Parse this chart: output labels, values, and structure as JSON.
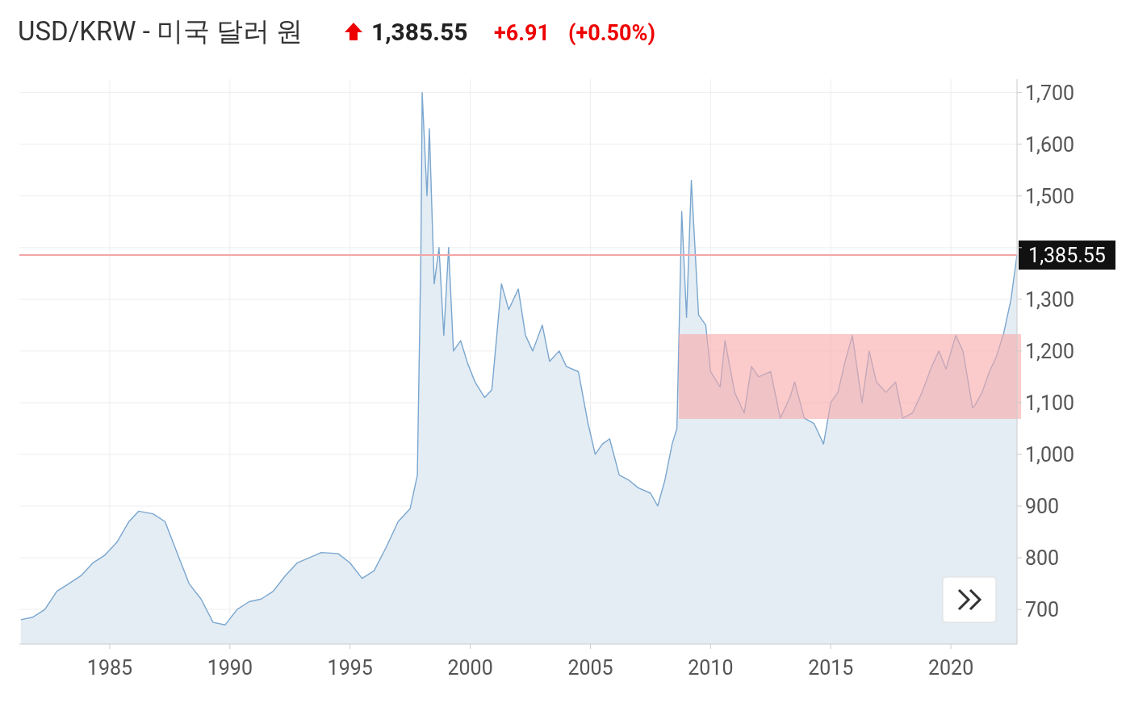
{
  "chart_data": {
    "type": "area",
    "title": "USD/KRW - 미국 달러 원",
    "annotations": [
      "1,385.55",
      "+6.91",
      "(+0.50%)"
    ],
    "x": [
      1981.3,
      1981.8,
      1982.3,
      1982.8,
      1983.3,
      1983.8,
      1984.3,
      1984.8,
      1985.3,
      1985.8,
      1986.2,
      1986.8,
      1987.3,
      1987.8,
      1988.3,
      1988.8,
      1989.3,
      1989.8,
      1990.3,
      1990.8,
      1991.3,
      1991.8,
      1992.3,
      1992.8,
      1993.3,
      1993.8,
      1994.5,
      1995.0,
      1995.5,
      1996.0,
      1996.5,
      1997.0,
      1997.5,
      1997.8,
      1997.95,
      1998.0,
      1998.2,
      1998.3,
      1998.5,
      1998.7,
      1998.9,
      1999.1,
      1999.3,
      1999.6,
      1999.9,
      2000.2,
      2000.6,
      2000.9,
      2001.3,
      2001.6,
      2002.0,
      2002.3,
      2002.6,
      2003.0,
      2003.3,
      2003.7,
      2004.0,
      2004.5,
      2004.9,
      2005.2,
      2005.5,
      2005.8,
      2006.2,
      2006.6,
      2007.0,
      2007.5,
      2007.8,
      2008.1,
      2008.4,
      2008.6,
      2008.8,
      2009.0,
      2009.2,
      2009.5,
      2009.8,
      2010.0,
      2010.4,
      2010.6,
      2011.0,
      2011.4,
      2011.7,
      2012.0,
      2012.5,
      2012.9,
      2013.3,
      2013.5,
      2013.9,
      2014.3,
      2014.7,
      2015.0,
      2015.3,
      2015.6,
      2015.9,
      2016.3,
      2016.6,
      2016.9,
      2017.3,
      2017.7,
      2018.0,
      2018.4,
      2018.8,
      2019.2,
      2019.5,
      2019.8,
      2020.2,
      2020.5,
      2020.9,
      2021.0,
      2021.3,
      2021.6,
      2021.9,
      2022.2,
      2022.5,
      2022.75
    ],
    "series": [
      {
        "color": "#7aa6cf",
        "values": [
          680,
          685,
          700,
          735,
          750,
          765,
          790,
          805,
          830,
          870,
          890,
          885,
          870,
          810,
          750,
          720,
          675,
          670,
          700,
          715,
          720,
          735,
          765,
          790,
          800,
          810,
          808,
          790,
          760,
          775,
          820,
          870,
          895,
          960,
          1400,
          1700,
          1500,
          1630,
          1330,
          1400,
          1230,
          1400,
          1200,
          1220,
          1175,
          1140,
          1110,
          1125,
          1330,
          1280,
          1320,
          1230,
          1200,
          1250,
          1180,
          1200,
          1170,
          1160,
          1060,
          1000,
          1020,
          1030,
          960,
          950,
          935,
          925,
          900,
          950,
          1020,
          1050,
          1470,
          1265,
          1530,
          1270,
          1250,
          1160,
          1130,
          1220,
          1120,
          1080,
          1170,
          1150,
          1160,
          1070,
          1110,
          1140,
          1070,
          1060,
          1020,
          1100,
          1120,
          1180,
          1230,
          1100,
          1200,
          1140,
          1120,
          1140,
          1070,
          1080,
          1120,
          1170,
          1200,
          1165,
          1230,
          1200,
          1090,
          1095,
          1120,
          1160,
          1190,
          1235,
          1300,
          1386
        ]
      }
    ],
    "xlim": [
      1981.24,
      2022.75
    ],
    "xticks": [
      1985,
      1990,
      1995,
      2000,
      2005,
      2010,
      2015,
      2020
    ],
    "ylim": [
      633,
      1726
    ],
    "yticks": [
      {
        "value": 700,
        "label": "700"
      },
      {
        "value": 800,
        "label": "800"
      },
      {
        "value": 900,
        "label": "900"
      },
      {
        "value": 1000,
        "label": "1,000"
      },
      {
        "value": 1100,
        "label": "1,100"
      },
      {
        "value": 1200,
        "label": "1,200"
      },
      {
        "value": 1300,
        "label": "1,300"
      },
      {
        "value": 1400,
        "label": null
      },
      {
        "value": 1500,
        "label": "1,500"
      },
      {
        "value": 1600,
        "label": "1,600"
      },
      {
        "value": 1700,
        "label": "1,700"
      }
    ],
    "ref_lines": [
      {
        "axis": "y",
        "value": 1385.55,
        "label": "1,385.55",
        "color": "#f4a6a6"
      }
    ],
    "grid": true
  }
}
